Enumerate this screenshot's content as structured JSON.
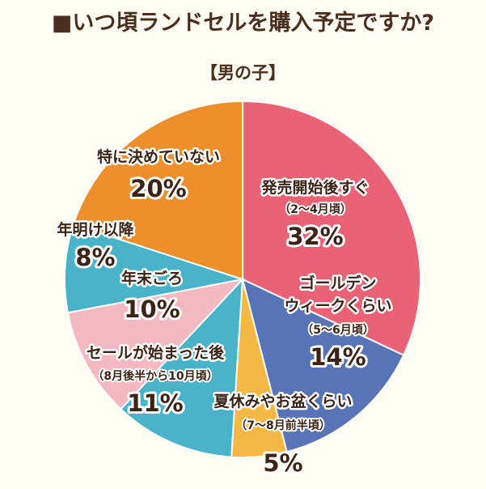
{
  "chart_data": {
    "type": "pie",
    "title": "■いつ頃ランドセルを購入予定ですか?",
    "subtitle": "【男の子】",
    "slices": [
      {
        "label": "発売開始後すぐ",
        "sub": "（2〜4月頃）",
        "value": 32,
        "pct_label": "32%",
        "color": "#e96374"
      },
      {
        "label": "ゴールデンウィークくらい",
        "label_lines": [
          "ゴールデン",
          "ウィークくらい"
        ],
        "sub": "（5〜6月頃）",
        "value": 14,
        "pct_label": "14%",
        "color": "#5874b6"
      },
      {
        "label": "夏休みやお盆くらい",
        "sub": "（7〜8月前半頃）",
        "value": 5,
        "pct_label": "5%",
        "color": "#f5b845"
      },
      {
        "label": "セールが始まった後",
        "sub": "（8月後半から10月頃）",
        "value": 11,
        "pct_label": "11%",
        "color": "#49b3c9"
      },
      {
        "label": "年末ごろ",
        "sub": "",
        "value": 10,
        "pct_label": "10%",
        "color": "#f4b9c2"
      },
      {
        "label": "年明け以降",
        "sub": "",
        "value": 8,
        "pct_label": "8%",
        "color": "#49b3c9"
      },
      {
        "label": "特に決めていない",
        "sub": "",
        "value": 20,
        "pct_label": "20%",
        "color": "#ef8f2c"
      }
    ]
  }
}
